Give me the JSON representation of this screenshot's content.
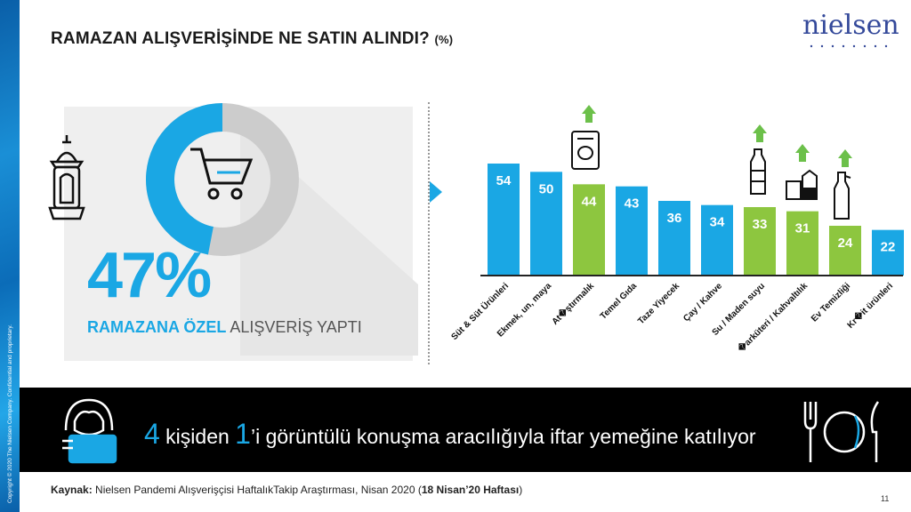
{
  "title": "RAMAZAN ALIŞVERİŞİNDE NE SATIN ALINDI?",
  "title_unit": "(%)",
  "logo": "nielsen",
  "copyright": "Copyright © 2020 The Nielsen Company. Confidential and proprietary.",
  "donut": {
    "value": 47,
    "label": "47%",
    "sub_highlight": "RAMAZANA ÖZEL",
    "sub_rest": "ALIŞVERİŞ YAPTI",
    "color_fill": "#1aa7e4",
    "color_rest": "#cccccc"
  },
  "chart_data": {
    "type": "bar",
    "categories": [
      "Süt & Süt Ürünleri",
      "Ekmek, un, maya",
      "At�ştırmalık",
      "Temel Gıda",
      "Taze Yiyecek",
      "Çay / Kahve",
      "Su / Maden suyu",
      "�arküteri / Kahvaltılık",
      "Ev Temizliği",
      "Kr�it ürünleri"
    ],
    "values": [
      54,
      50,
      44,
      43,
      36,
      34,
      33,
      31,
      24,
      22
    ],
    "highlight": [
      false,
      false,
      true,
      false,
      false,
      false,
      true,
      true,
      true,
      false
    ],
    "up_arrow": [
      false,
      false,
      true,
      false,
      false,
      false,
      true,
      true,
      true,
      false
    ],
    "colors": {
      "default": "#1aa7e4",
      "highlight": "#8dc63f",
      "arrow": "#6cc04a"
    }
  },
  "banner": {
    "num1": "4",
    "text1": " kişiden ",
    "num2": "1",
    "text2": "’i görüntülü konuşma aracılığıyla iftar yemeğine katılıyor"
  },
  "source": {
    "label": "Kaynak:",
    "text": " Nielsen Pandemi Alışverişçisi HaftalıkTakip Araştırması, Nisan 2020 (",
    "bold": "18 Nisan’20 Haftası",
    "end": ")"
  },
  "page_number": "11"
}
